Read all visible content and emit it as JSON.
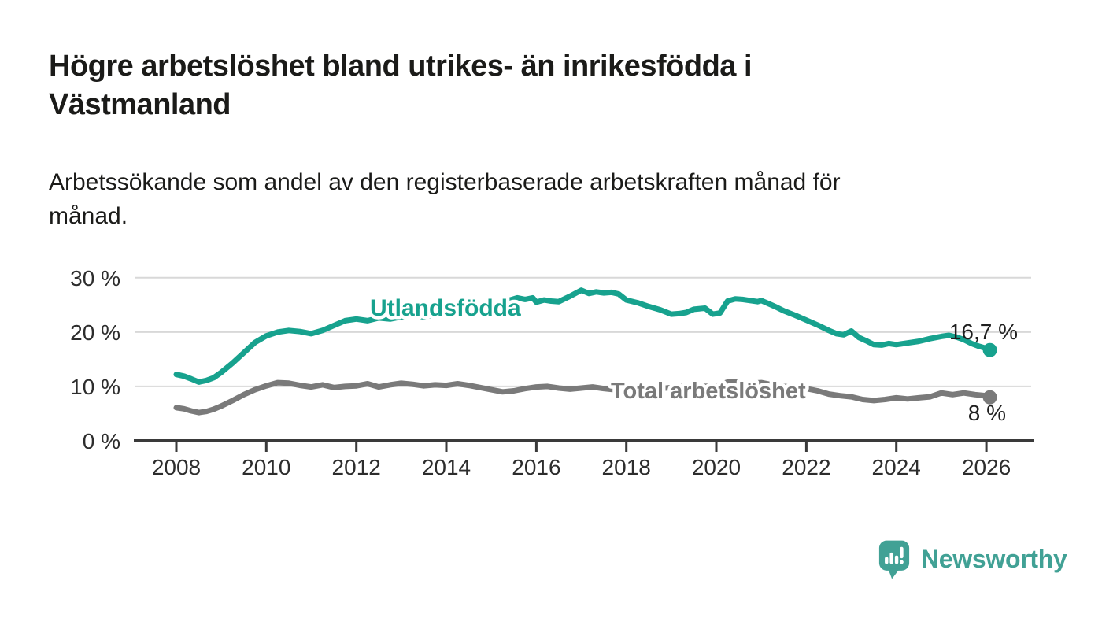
{
  "page": {
    "background": "#ffffff"
  },
  "header": {
    "title_lines": [
      "Högre arbetslöshet bland utrikes- än inrikesfödda i",
      "Västmanland"
    ],
    "subtitle_lines": [
      "Arbetssökande som andel av den registerbaserade arbetskraften månad för",
      "månad."
    ]
  },
  "footer": {
    "brand": "Newsworthy",
    "logo_icon": "speech-bubble-bar-chart-icon",
    "logo_color": "#41a195"
  },
  "chart_data": {
    "type": "line",
    "title": "Högre arbetslöshet bland utrikes- än inrikesfödda i Västmanland",
    "subtitle": "Arbetssökande som andel av den registerbaserade arbetskraften månad för månad.",
    "xlabel": "",
    "ylabel": "",
    "grid": true,
    "legend_position": "inline-labels",
    "x_axis": {
      "ticks": [
        2008,
        2010,
        2012,
        2014,
        2016,
        2018,
        2020,
        2022,
        2024,
        2026
      ],
      "range_years": [
        2007.1,
        2027.1
      ]
    },
    "y_axis": {
      "ticks": [
        0,
        10,
        20,
        30
      ],
      "suffix": " %",
      "range": [
        0,
        30
      ]
    },
    "axis_color": "#3a3a3a",
    "gridline_color": "#d8d8d8",
    "series": [
      {
        "id": "utlandsfodda",
        "name": "Utlandsfödda",
        "color": "#17a28e",
        "stroke_width": 7,
        "end_value": 16.7,
        "end_label": {
          "text": "16,7 %",
          "x": 1293,
          "y": 431,
          "anchor": "end"
        },
        "label": {
          "x": 470,
          "y": 401,
          "size": 30
        },
        "points": [
          [
            2008.0,
            12.2
          ],
          [
            2008.17,
            11.9
          ],
          [
            2008.33,
            11.4
          ],
          [
            2008.5,
            10.8
          ],
          [
            2008.67,
            11.1
          ],
          [
            2008.83,
            11.6
          ],
          [
            2009.0,
            12.6
          ],
          [
            2009.25,
            14.3
          ],
          [
            2009.5,
            16.2
          ],
          [
            2009.75,
            18.1
          ],
          [
            2010.0,
            19.3
          ],
          [
            2010.25,
            20.0
          ],
          [
            2010.5,
            20.3
          ],
          [
            2010.75,
            20.1
          ],
          [
            2011.0,
            19.7
          ],
          [
            2011.25,
            20.3
          ],
          [
            2011.5,
            21.2
          ],
          [
            2011.75,
            22.1
          ],
          [
            2012.0,
            22.4
          ],
          [
            2012.25,
            22.1
          ],
          [
            2012.5,
            22.6
          ],
          [
            2012.75,
            22.4
          ],
          [
            2013.0,
            22.8
          ],
          [
            2013.25,
            23.1
          ],
          [
            2013.5,
            22.8
          ],
          [
            2013.75,
            23.2
          ],
          [
            2014.0,
            23.1
          ],
          [
            2014.25,
            23.6
          ],
          [
            2014.5,
            23.4
          ],
          [
            2014.75,
            23.8
          ],
          [
            2015.0,
            24.1
          ],
          [
            2015.25,
            24.6
          ],
          [
            2015.42,
            25.9
          ],
          [
            2015.58,
            26.3
          ],
          [
            2015.75,
            26.0
          ],
          [
            2015.92,
            26.3
          ],
          [
            2016.0,
            25.5
          ],
          [
            2016.17,
            25.9
          ],
          [
            2016.33,
            25.7
          ],
          [
            2016.5,
            25.6
          ],
          [
            2016.75,
            26.6
          ],
          [
            2017.0,
            27.7
          ],
          [
            2017.17,
            27.1
          ],
          [
            2017.33,
            27.4
          ],
          [
            2017.5,
            27.2
          ],
          [
            2017.67,
            27.3
          ],
          [
            2017.83,
            27.0
          ],
          [
            2018.0,
            25.9
          ],
          [
            2018.25,
            25.4
          ],
          [
            2018.5,
            24.7
          ],
          [
            2018.75,
            24.1
          ],
          [
            2019.0,
            23.3
          ],
          [
            2019.17,
            23.4
          ],
          [
            2019.33,
            23.6
          ],
          [
            2019.5,
            24.2
          ],
          [
            2019.75,
            24.4
          ],
          [
            2019.92,
            23.3
          ],
          [
            2020.08,
            23.5
          ],
          [
            2020.25,
            25.7
          ],
          [
            2020.42,
            26.1
          ],
          [
            2020.58,
            26.0
          ],
          [
            2020.75,
            25.8
          ],
          [
            2020.92,
            25.6
          ],
          [
            2021.0,
            25.8
          ],
          [
            2021.17,
            25.2
          ],
          [
            2021.33,
            24.6
          ],
          [
            2021.5,
            23.9
          ],
          [
            2021.75,
            23.1
          ],
          [
            2022.0,
            22.2
          ],
          [
            2022.25,
            21.3
          ],
          [
            2022.5,
            20.3
          ],
          [
            2022.67,
            19.7
          ],
          [
            2022.83,
            19.5
          ],
          [
            2023.0,
            20.2
          ],
          [
            2023.17,
            19.0
          ],
          [
            2023.33,
            18.4
          ],
          [
            2023.5,
            17.7
          ],
          [
            2023.67,
            17.6
          ],
          [
            2023.83,
            17.9
          ],
          [
            2024.0,
            17.7
          ],
          [
            2024.25,
            18.0
          ],
          [
            2024.5,
            18.3
          ],
          [
            2024.75,
            18.8
          ],
          [
            2025.0,
            19.2
          ],
          [
            2025.17,
            19.4
          ],
          [
            2025.33,
            19.1
          ],
          [
            2025.5,
            18.6
          ],
          [
            2025.67,
            17.9
          ],
          [
            2025.83,
            17.4
          ],
          [
            2026.0,
            17.0
          ],
          [
            2026.08,
            16.7
          ]
        ]
      },
      {
        "id": "total-arbetsloshet",
        "name": "Total arbetslöshet",
        "color": "#7a7a7a",
        "stroke_width": 7,
        "end_value": 8,
        "end_label": {
          "text": "8 %",
          "x": 1278,
          "y": 534,
          "anchor": "end"
        },
        "label": {
          "x": 776,
          "y": 506,
          "size": 29
        },
        "points": [
          [
            2008.0,
            6.1
          ],
          [
            2008.17,
            5.9
          ],
          [
            2008.33,
            5.5
          ],
          [
            2008.5,
            5.2
          ],
          [
            2008.67,
            5.4
          ],
          [
            2008.83,
            5.8
          ],
          [
            2009.0,
            6.4
          ],
          [
            2009.25,
            7.4
          ],
          [
            2009.5,
            8.5
          ],
          [
            2009.75,
            9.4
          ],
          [
            2010.0,
            10.1
          ],
          [
            2010.25,
            10.7
          ],
          [
            2010.5,
            10.6
          ],
          [
            2010.75,
            10.2
          ],
          [
            2011.0,
            9.9
          ],
          [
            2011.25,
            10.3
          ],
          [
            2011.5,
            9.8
          ],
          [
            2011.75,
            10.0
          ],
          [
            2012.0,
            10.1
          ],
          [
            2012.25,
            10.5
          ],
          [
            2012.5,
            9.9
          ],
          [
            2012.75,
            10.3
          ],
          [
            2013.0,
            10.6
          ],
          [
            2013.25,
            10.4
          ],
          [
            2013.5,
            10.1
          ],
          [
            2013.75,
            10.3
          ],
          [
            2014.0,
            10.2
          ],
          [
            2014.25,
            10.5
          ],
          [
            2014.5,
            10.2
          ],
          [
            2014.75,
            9.8
          ],
          [
            2015.0,
            9.4
          ],
          [
            2015.25,
            9.0
          ],
          [
            2015.5,
            9.2
          ],
          [
            2015.75,
            9.6
          ],
          [
            2016.0,
            9.9
          ],
          [
            2016.25,
            10.0
          ],
          [
            2016.5,
            9.7
          ],
          [
            2016.75,
            9.5
          ],
          [
            2017.0,
            9.7
          ],
          [
            2017.25,
            9.9
          ],
          [
            2017.5,
            9.6
          ],
          [
            2017.75,
            9.4
          ],
          [
            2018.0,
            9.5
          ],
          [
            2018.25,
            9.7
          ],
          [
            2018.5,
            9.4
          ],
          [
            2018.75,
            9.6
          ],
          [
            2019.0,
            9.8
          ],
          [
            2019.25,
            10.0
          ],
          [
            2019.5,
            10.2
          ],
          [
            2019.75,
            10.0
          ],
          [
            2020.0,
            10.1
          ],
          [
            2020.25,
            10.8
          ],
          [
            2020.5,
            10.9
          ],
          [
            2020.75,
            10.6
          ],
          [
            2021.0,
            10.7
          ],
          [
            2021.25,
            10.3
          ],
          [
            2021.5,
            10.0
          ],
          [
            2021.75,
            9.8
          ],
          [
            2022.0,
            9.6
          ],
          [
            2022.25,
            9.2
          ],
          [
            2022.5,
            8.6
          ],
          [
            2022.75,
            8.3
          ],
          [
            2023.0,
            8.1
          ],
          [
            2023.25,
            7.6
          ],
          [
            2023.5,
            7.4
          ],
          [
            2023.75,
            7.6
          ],
          [
            2024.0,
            7.9
          ],
          [
            2024.25,
            7.7
          ],
          [
            2024.5,
            7.9
          ],
          [
            2024.75,
            8.1
          ],
          [
            2025.0,
            8.8
          ],
          [
            2025.25,
            8.5
          ],
          [
            2025.5,
            8.8
          ],
          [
            2025.75,
            8.5
          ],
          [
            2026.0,
            8.3
          ],
          [
            2026.08,
            8.0
          ]
        ]
      }
    ]
  }
}
